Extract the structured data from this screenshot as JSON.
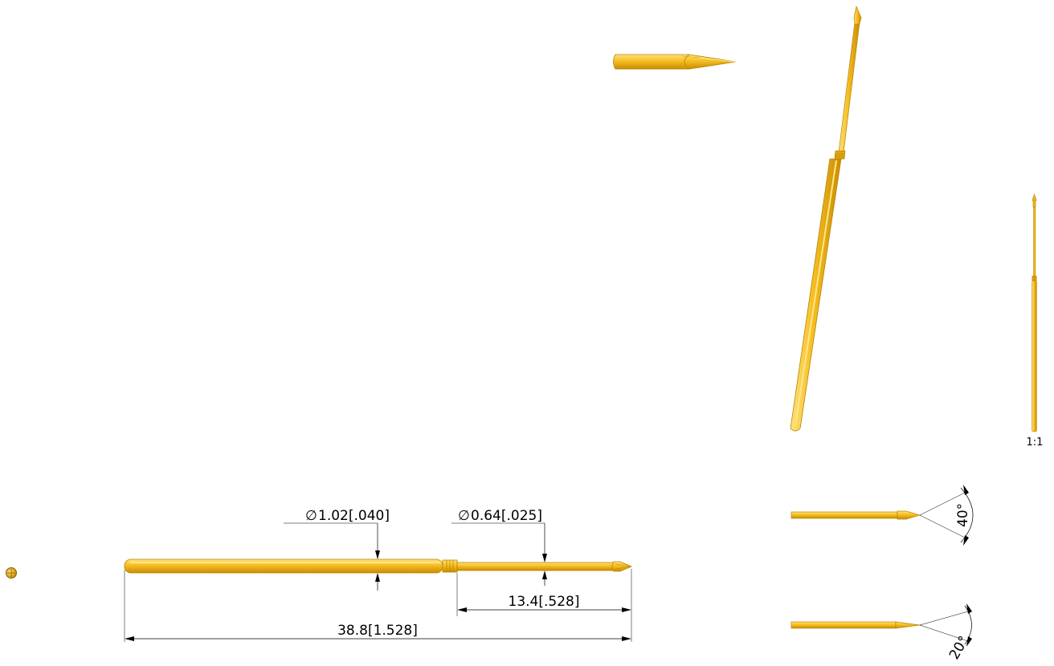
{
  "colors": {
    "gold_light": "#ffd24d",
    "gold_mid": "#f0b21a",
    "gold_dark": "#c98d00",
    "line": "#000000"
  },
  "dimensions": {
    "barrel_diameter": "1.02[.040]",
    "plunger_diameter": "0.64[.025]",
    "plunger_length": "13.4[.528]",
    "overall_length": "38.8[1.528]",
    "tip_angle_top": "40°",
    "tip_angle_bottom": "20°"
  },
  "scale_label": "1:1",
  "diameter_symbol": "∅",
  "icons": {
    "end_view": "probe-end-view-icon"
  }
}
